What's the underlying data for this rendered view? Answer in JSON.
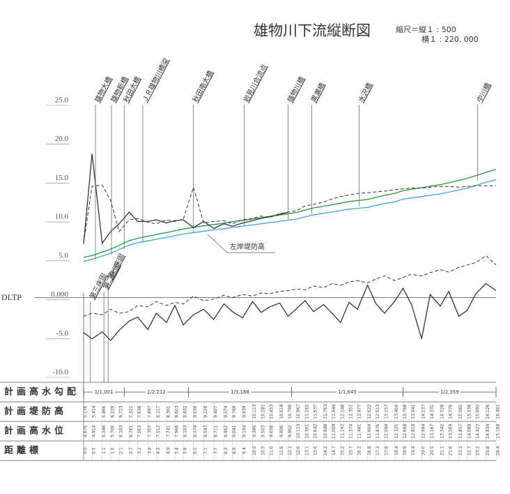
{
  "chart_data": {
    "type": "profile",
    "title": "雄物川下流縦断図",
    "scale_vertical": "縮尺＝縦１ : 500",
    "scale_horizontal": "横１ : 220. 000",
    "datum_label": "DLTP",
    "annotation": "左岸堤防高",
    "xlim": [
      0,
      24.4
    ],
    "ylim": [
      -10,
      25
    ],
    "yticks": [
      {
        "value": 25,
        "label": "25.0"
      },
      {
        "value": 20,
        "label": "20.0"
      },
      {
        "value": 15,
        "label": "15.0"
      },
      {
        "value": 10,
        "label": "10.0"
      },
      {
        "value": 5,
        "label": "5.0"
      },
      {
        "value": 0,
        "label": "0.000"
      },
      {
        "value": -5,
        "label": "-5.0"
      },
      {
        "value": -10,
        "label": "-10.0"
      }
    ],
    "x": [
      0.0,
      0.5,
      1.1,
      1.6,
      2.1,
      2.7,
      3.2,
      3.8,
      4.3,
      4.9,
      5.4,
      5.9,
      6.5,
      7.1,
      7.7,
      8.3,
      8.8,
      9.4,
      10.0,
      10.5,
      11.0,
      11.6,
      12.1,
      12.6,
      13.1,
      13.6,
      14.2,
      14.7,
      15.2,
      15.7,
      16.2,
      16.8,
      17.3,
      17.8,
      18.4,
      18.9,
      19.4,
      20.0,
      20.5,
      21.1,
      21.6,
      22.2,
      22.7,
      23.2,
      23.8,
      24.4
    ],
    "x_labels": [
      "0.0",
      "0.5",
      "1.1",
      "1.6",
      "2.1",
      "2.7",
      "3.2",
      "3.8",
      "4.3",
      "4.9",
      "5.4",
      "5.9",
      "6.5",
      "7.1",
      "7.7",
      "8.3",
      "8.8",
      "9.4",
      "10.0",
      "10.5",
      "11.0",
      "11.6",
      "12.1",
      "12.6",
      "13.1",
      "13.6",
      "14.2",
      "14.7",
      "15.2",
      "15.7",
      "16.2",
      "16.8",
      "17.3",
      "17.8",
      "18.4",
      "18.9",
      "19.4",
      "20.0",
      "20.5",
      "21.1",
      "21.6",
      "22.2",
      "22.7",
      "23.2",
      "23.8",
      "24.4"
    ],
    "series": [
      {
        "name": "計画堤防高",
        "color": "#1e9a3c",
        "dash": false,
        "values": [
          5.176,
          5.414,
          5.866,
          6.229,
          6.723,
          7.321,
          7.638,
          7.897,
          8.117,
          8.361,
          8.603,
          8.832,
          9.039,
          9.228,
          9.407,
          9.574,
          9.769,
          9.939,
          10.113,
          10.281,
          10.453,
          10.619,
          10.796,
          10.967,
          11.265,
          11.537,
          11.763,
          11.944,
          12.148,
          12.351,
          12.477,
          12.622,
          12.913,
          13.157,
          13.404,
          13.768,
          13.941,
          14.137,
          14.331,
          14.528,
          14.776,
          15.085,
          15.338,
          15.692,
          16.126,
          16.481
        ]
      },
      {
        "name": "計画高水位",
        "color": "#3aa6e6",
        "dash": false,
        "values": [
          4.676,
          4.914,
          5.346,
          5.706,
          6.183,
          6.761,
          7.063,
          7.307,
          7.512,
          7.741,
          7.966,
          8.183,
          8.374,
          8.547,
          8.711,
          8.862,
          9.041,
          9.194,
          9.349,
          9.503,
          9.658,
          9.806,
          9.962,
          10.113,
          10.391,
          10.642,
          10.848,
          11.009,
          11.192,
          11.374,
          11.481,
          11.604,
          11.876,
          12.099,
          12.325,
          12.668,
          12.819,
          12.994,
          13.167,
          13.342,
          13.569,
          13.857,
          14.089,
          14.422,
          14.834,
          15.168
        ]
      },
      {
        "color": "#333333",
        "dash": true,
        "values": [
          7.0,
          14.3,
          14.5,
          12.5,
          8.5,
          10.0,
          10.2,
          9.7,
          9.5,
          10.0,
          9.8,
          10.1,
          14.2,
          9.6,
          9.8,
          9.9,
          9.5,
          10.0,
          10.2,
          10.5,
          10.3,
          10.8,
          11.0,
          11.2,
          11.8,
          12.0,
          12.3,
          12.7,
          13.0,
          13.2,
          13.4,
          13.5,
          13.6,
          13.7,
          13.9,
          14.0,
          14.1,
          14.1,
          14.2,
          14.3,
          14.3,
          14.2,
          14.3,
          14.4,
          14.4,
          14.4
        ]
      },
      {
        "color": "#333333",
        "dash": false,
        "values": [
          6.9,
          18.5,
          7.0,
          8.5,
          9.5,
          11.0,
          9.8,
          9.8,
          10.0,
          9.6,
          9.9,
          10.0,
          9.0,
          9.8,
          8.9,
          9.5,
          9.2,
          9.6,
          9.9,
          10.2,
          10.4,
          10.7,
          11.0,
          null,
          null,
          null,
          null,
          null,
          null,
          null,
          null,
          null,
          null,
          null,
          null,
          null,
          null,
          null,
          null,
          null,
          null,
          null,
          null,
          null,
          null,
          null
        ]
      },
      {
        "color": "#333333",
        "dash": true,
        "values": [
          -2.4,
          -2.0,
          -2.2,
          -1.5,
          -2.0,
          -1.8,
          -1.0,
          -1.2,
          -0.5,
          -1.0,
          -0.6,
          -0.8,
          0.2,
          -0.4,
          -0.2,
          0.3,
          0.0,
          0.4,
          0.2,
          0.6,
          0.5,
          0.8,
          0.9,
          1.1,
          1.0,
          1.5,
          1.3,
          1.8,
          1.6,
          2.0,
          2.2,
          1.9,
          2.4,
          2.8,
          2.2,
          2.6,
          3.0,
          2.8,
          3.2,
          3.6,
          3.3,
          3.9,
          4.2,
          4.5,
          5.4,
          4.2
        ]
      },
      {
        "color": "#333333",
        "dash": false,
        "values": [
          -4.5,
          -5.3,
          -4.4,
          -5.5,
          -4.2,
          -3.0,
          -2.5,
          -4.1,
          -2.0,
          -3.2,
          -1.0,
          -3.5,
          -2.2,
          -1.5,
          -2.8,
          -0.8,
          -1.8,
          -2.6,
          -0.5,
          -1.9,
          -1.2,
          -0.7,
          -2.4,
          -1.4,
          -0.4,
          -1.8,
          -0.9,
          -2.0,
          -3.2,
          -0.6,
          -1.5,
          1.6,
          -0.8,
          -2.0,
          -0.5,
          1.2,
          -0.9,
          -5.3,
          0.4,
          -1.1,
          0.8,
          -2.4,
          -1.6,
          0.5,
          1.8,
          0.9
        ]
      }
    ],
    "bridges": [
      {
        "name": "雄物大橋",
        "x": 0.7
      },
      {
        "name": "雄物新橋",
        "x": 1.65
      },
      {
        "name": "秋田大橋",
        "x": 2.4
      },
      {
        "name": "ＪＲ雄物川橋梁",
        "x": 3.5
      },
      {
        "name": "秋田南大橋",
        "x": 6.5
      },
      {
        "name": "岩見川合流点",
        "x": 9.5
      },
      {
        "name": "雄物川橋",
        "x": 12.1
      },
      {
        "name": "黒瀬橋",
        "x": 13.5
      },
      {
        "name": "水沢橋",
        "x": 16.3
      },
      {
        "name": "中川橋",
        "x": 23.3
      }
    ],
    "weirs": [
      {
        "name": "第三床固",
        "x": 0.4
      },
      {
        "name": "第二床固",
        "x": 1.2
      },
      {
        "name": "第一床固",
        "x": 1.45
      }
    ],
    "gradient": {
      "breaks": [
        0,
        2.4,
        6.2,
        12.3,
        18.9,
        24.4
      ],
      "labels": [
        "1/1,001",
        "1/2,212",
        "1/3,188",
        "1/1,645",
        "1/2,359"
      ]
    },
    "row_labels": [
      "計画高水勾配",
      "計画堤防高",
      "計画高水位",
      "距離標"
    ]
  }
}
